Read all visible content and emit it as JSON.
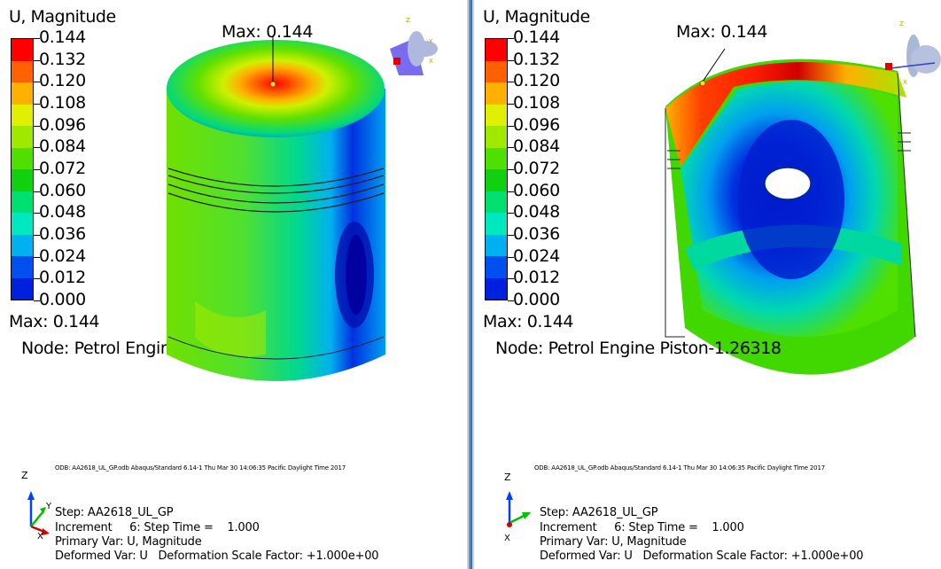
{
  "legend": {
    "title": "U, Magnitude",
    "labels": [
      "0.144",
      "0.132",
      "0.120",
      "0.108",
      "0.096",
      "0.084",
      "0.072",
      "0.060",
      "0.048",
      "0.036",
      "0.024",
      "0.012",
      "0.000"
    ],
    "colors": [
      "#ff0000",
      "#ff6000",
      "#ffb000",
      "#e0f000",
      "#a0e800",
      "#50e000",
      "#10d010",
      "#00e070",
      "#00e8c0",
      "#00b0f0",
      "#0050f0",
      "#0020e0"
    ],
    "max_text": "Max: 0.144",
    "node_text": "Node: Petrol Engine Piston-1.26318"
  },
  "viewports": [
    {
      "max_label": "Max: 0.144",
      "odb": "ODB: AA2618_UL_GP.odb   Abaqus/Standard 6.14-1   Thu Mar 30 14:06:35 Pacific Daylight Time 2017",
      "step": "Step: AA2618_UL_GP",
      "increment": "Increment     6: Step Time =    1.000",
      "primary": "Primary Var: U, Magnitude",
      "deformed": "Deformed Var: U   Deformation Scale Factor: +1.000e+00"
    },
    {
      "max_label": "Max: 0.144",
      "odb": "ODB: AA2618_UL_GP.odb   Abaqus/Standard 6.14-1   Thu Mar 30 14:06:35 Pacific Daylight Time 2017",
      "step": "Step: AA2618_UL_GP",
      "increment": "Increment     6: Step Time =    1.000",
      "primary": "Primary Var: U, Magnitude",
      "deformed": "Deformed Var: U   Deformation Scale Factor: +1.000e+00"
    }
  ],
  "triad_axes": {
    "z": "Z",
    "y": "Y",
    "x": "X"
  },
  "icons": [
    "view-orientation-icon",
    "coordinate-triad-icon"
  ]
}
